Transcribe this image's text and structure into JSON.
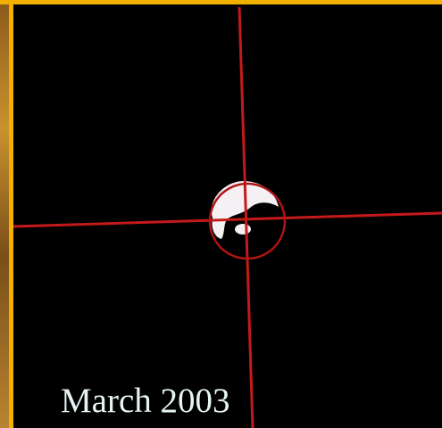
{
  "caption": "March 2003"
}
